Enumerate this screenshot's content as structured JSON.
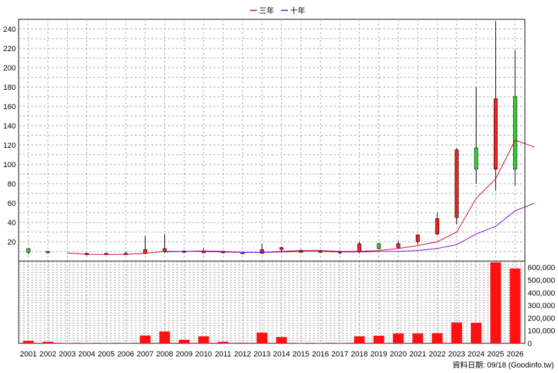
{
  "legend": {
    "items": [
      {
        "label": "三年",
        "color": "#cc0033"
      },
      {
        "label": "十年",
        "color": "#7700cc"
      }
    ],
    "position": "top-center"
  },
  "footer": {
    "text": "資料日期: 09/18 (Goodinfo.tw)"
  },
  "colors": {
    "up": "#ee2222",
    "down": "#33cc33",
    "volume": "#ff1111",
    "grid": "#aaaaaa"
  },
  "chart_data": [
    {
      "type": "candlestick",
      "grid": true,
      "ylim": [
        0,
        250
      ],
      "yticks": [
        20,
        40,
        60,
        80,
        100,
        120,
        140,
        160,
        180,
        200,
        220,
        240
      ],
      "categories": [
        "2001",
        "2002",
        "2003",
        "2004",
        "2005",
        "2006",
        "2007",
        "2008",
        "2009",
        "2010",
        "2011",
        "2012",
        "2013",
        "2014",
        "2015",
        "2016",
        "2017",
        "2018",
        "2019",
        "2020",
        "2021",
        "2022",
        "2023",
        "2024",
        "2025",
        "2026"
      ],
      "candles": [
        {
          "o": 9,
          "h": 13,
          "l": 7,
          "c": 13,
          "dir": "down"
        },
        {
          "o": 10,
          "h": 10.5,
          "l": 8.5,
          "c": 9.5,
          "dir": "up"
        },
        {
          "o": null,
          "h": null,
          "l": null,
          "c": null,
          "dir": "none"
        },
        {
          "o": 8,
          "h": 8.5,
          "l": 6,
          "c": 7,
          "dir": "up"
        },
        {
          "o": 8,
          "h": 8.5,
          "l": 6.5,
          "c": 7.5,
          "dir": "up"
        },
        {
          "o": 7.5,
          "h": 10,
          "l": 7,
          "c": 8,
          "dir": "up"
        },
        {
          "o": 12,
          "h": 26,
          "l": 7,
          "c": 8,
          "dir": "up"
        },
        {
          "o": 13,
          "h": 28,
          "l": 8,
          "c": 10,
          "dir": "up"
        },
        {
          "o": 10.5,
          "h": 11,
          "l": 9.5,
          "c": 10,
          "dir": "up"
        },
        {
          "o": 10,
          "h": 13,
          "l": 9,
          "c": 10,
          "dir": "up"
        },
        {
          "o": 10,
          "h": 11,
          "l": 8,
          "c": 9,
          "dir": "up"
        },
        {
          "o": 9,
          "h": 10,
          "l": 7.5,
          "c": 8.5,
          "dir": "up"
        },
        {
          "o": 12,
          "h": 18,
          "l": 7.5,
          "c": 8,
          "dir": "up"
        },
        {
          "o": 12,
          "h": 15,
          "l": 10,
          "c": 14,
          "dir": "up"
        },
        {
          "o": 10.5,
          "h": 12,
          "l": 9,
          "c": 10,
          "dir": "up"
        },
        {
          "o": 10.5,
          "h": 11,
          "l": 8.5,
          "c": 10,
          "dir": "up"
        },
        {
          "o": 10,
          "h": 11,
          "l": 7,
          "c": 9,
          "dir": "up"
        },
        {
          "o": 18,
          "h": 20,
          "l": 8,
          "c": 10,
          "dir": "up"
        },
        {
          "o": 13,
          "h": 19,
          "l": 12,
          "c": 18,
          "dir": "down"
        },
        {
          "o": 18,
          "h": 21,
          "l": 13,
          "c": 14,
          "dir": "up"
        },
        {
          "o": 27,
          "h": 28,
          "l": 17,
          "c": 20,
          "dir": "up"
        },
        {
          "o": 44,
          "h": 50,
          "l": 27,
          "c": 28,
          "dir": "up"
        },
        {
          "o": 115,
          "h": 117,
          "l": 38,
          "c": 45,
          "dir": "up"
        },
        {
          "o": 95,
          "h": 180,
          "l": 80,
          "c": 117,
          "dir": "down"
        },
        {
          "o": 168,
          "h": 248,
          "l": 73,
          "c": 95,
          "dir": "up"
        },
        {
          "o": 95,
          "h": 218,
          "l": 78,
          "c": 170,
          "dir": "down"
        }
      ],
      "series": [
        {
          "name": "三年",
          "points": [
            [
              2,
              8.5
            ],
            [
              3,
              7
            ],
            [
              4,
              7
            ],
            [
              5,
              7
            ],
            [
              6,
              8
            ],
            [
              7,
              10
            ],
            [
              8,
              10
            ],
            [
              9,
              10.5
            ],
            [
              10,
              10
            ],
            [
              11,
              9
            ],
            [
              12,
              9
            ],
            [
              13,
              10
            ],
            [
              14,
              11
            ],
            [
              15,
              11
            ],
            [
              16,
              10
            ],
            [
              17,
              10
            ],
            [
              18,
              11
            ],
            [
              19,
              13
            ],
            [
              20,
              16
            ],
            [
              21,
              20
            ],
            [
              22,
              30
            ],
            [
              23,
              65
            ],
            [
              24,
              85
            ],
            [
              25,
              125
            ],
            [
              26,
              118
            ]
          ]
        },
        {
          "name": "十年",
          "points": [
            [
              7,
              9.5
            ],
            [
              8,
              10
            ],
            [
              9,
              10
            ],
            [
              10,
              9.5
            ],
            [
              11,
              9
            ],
            [
              12,
              9
            ],
            [
              13,
              9.5
            ],
            [
              14,
              10
            ],
            [
              15,
              10
            ],
            [
              16,
              9.5
            ],
            [
              17,
              9.5
            ],
            [
              18,
              10
            ],
            [
              19,
              10
            ],
            [
              20,
              11
            ],
            [
              21,
              13
            ],
            [
              22,
              17
            ],
            [
              23,
              28
            ],
            [
              24,
              36
            ],
            [
              25,
              52
            ],
            [
              26,
              60
            ]
          ]
        }
      ]
    },
    {
      "type": "bar",
      "grid": true,
      "ylim": [
        0,
        650000
      ],
      "yticks": [
        "0",
        "100,000",
        "200,000",
        "300,000",
        "400,000",
        "500,000",
        "600,000"
      ],
      "ytick_values": [
        0,
        100000,
        200000,
        300000,
        400000,
        500000,
        600000
      ],
      "categories": [
        "2001",
        "2002",
        "2003",
        "2004",
        "2005",
        "2006",
        "2007",
        "2008",
        "2009",
        "2010",
        "2011",
        "2012",
        "2013",
        "2014",
        "2015",
        "2016",
        "2017",
        "2018",
        "2019",
        "2020",
        "2021",
        "2022",
        "2023",
        "2024",
        "2025",
        "2026"
      ],
      "values": [
        20000,
        12000,
        3000,
        2000,
        2000,
        2000,
        62000,
        93000,
        28000,
        55000,
        12000,
        5000,
        85000,
        50000,
        3000,
        3000,
        3000,
        55000,
        60000,
        78000,
        78000,
        80000,
        165000,
        163000,
        640000,
        592000
      ]
    }
  ]
}
